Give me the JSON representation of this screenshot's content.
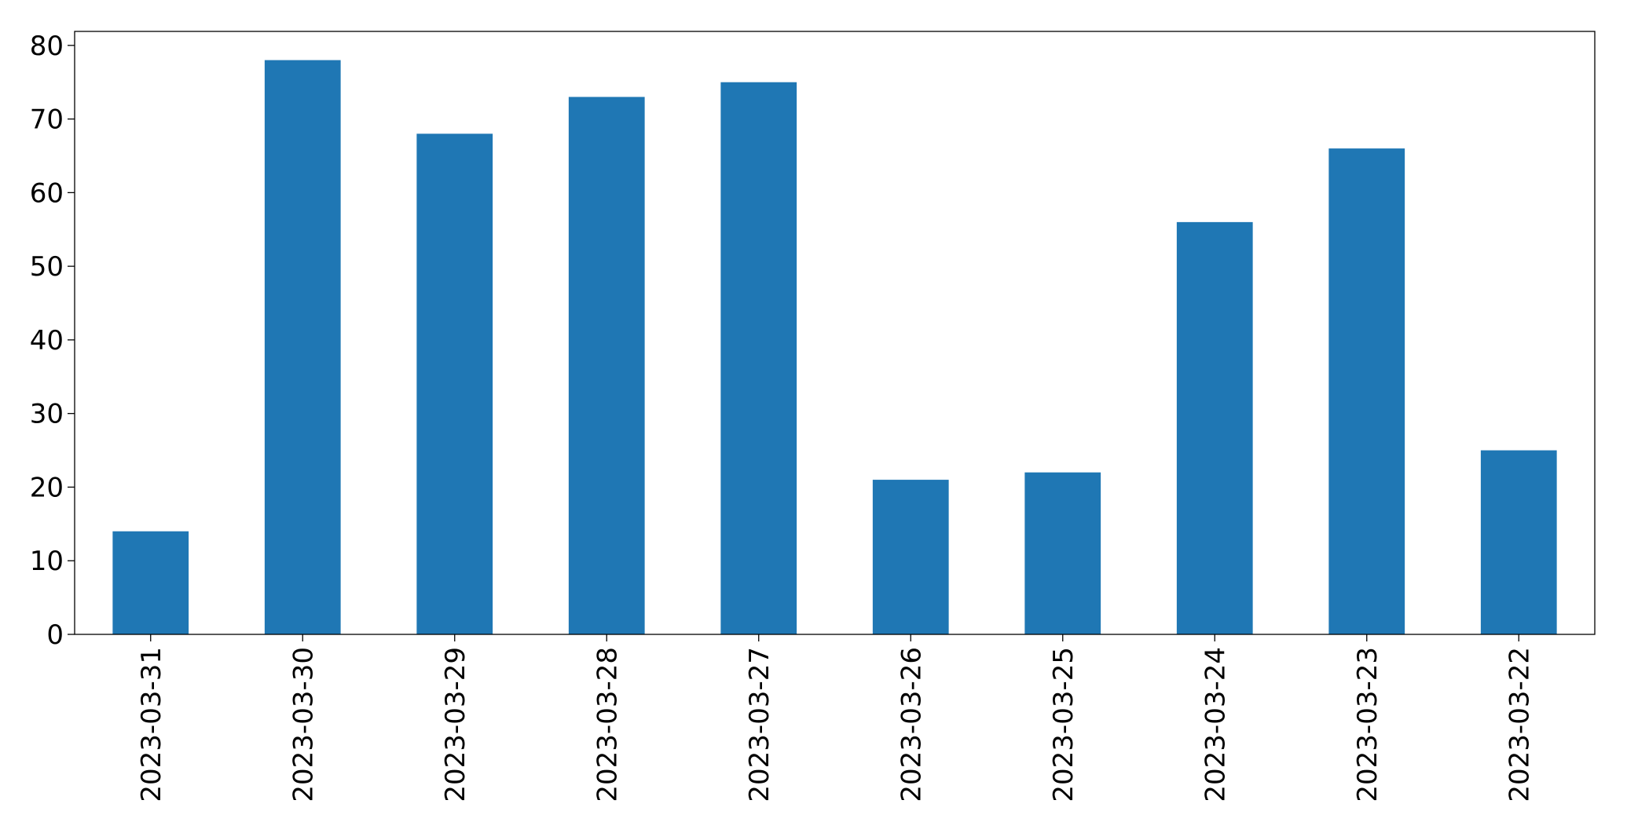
{
  "chart_data": {
    "type": "bar",
    "categories": [
      "2023-03-31",
      "2023-03-30",
      "2023-03-29",
      "2023-03-28",
      "2023-03-27",
      "2023-03-26",
      "2023-03-25",
      "2023-03-24",
      "2023-03-23",
      "2023-03-22"
    ],
    "values": [
      14,
      78,
      68,
      73,
      75,
      21,
      22,
      56,
      66,
      25
    ],
    "color": "#1f77b4",
    "ylim": [
      0,
      81.9
    ],
    "yticks": [
      0,
      10,
      20,
      30,
      40,
      50,
      60,
      70,
      80
    ],
    "grid": false
  }
}
